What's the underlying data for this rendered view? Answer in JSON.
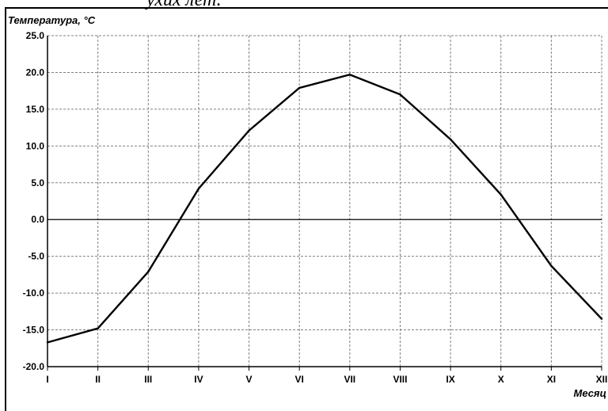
{
  "page": {
    "top_fragment": "ухих лет."
  },
  "chart_data": {
    "type": "line",
    "ylabel": "Температура, °С",
    "xlabel": "Месяц",
    "categories": [
      "I",
      "II",
      "III",
      "IV",
      "V",
      "VI",
      "VII",
      "VIII",
      "IX",
      "X",
      "XI",
      "XII"
    ],
    "y_ticks": [
      "25.0",
      "20.0",
      "15.0",
      "10.0",
      "5.0",
      "0.0",
      "-5.0",
      "-10.0",
      "-15.0",
      "-20.0"
    ],
    "y_tick_values": [
      25,
      20,
      15,
      10,
      5,
      0,
      -5,
      -10,
      -15,
      -20
    ],
    "ylim": [
      -20,
      25
    ],
    "grid": true,
    "series": [
      {
        "values": [
          -16.7,
          -14.8,
          -7.1,
          4.2,
          12.1,
          17.9,
          19.7,
          17.0,
          10.9,
          3.4,
          -6.3,
          -13.5
        ]
      }
    ],
    "colors": {
      "line": "#000000",
      "grid": "#808080",
      "zero_line": "#000000"
    }
  }
}
